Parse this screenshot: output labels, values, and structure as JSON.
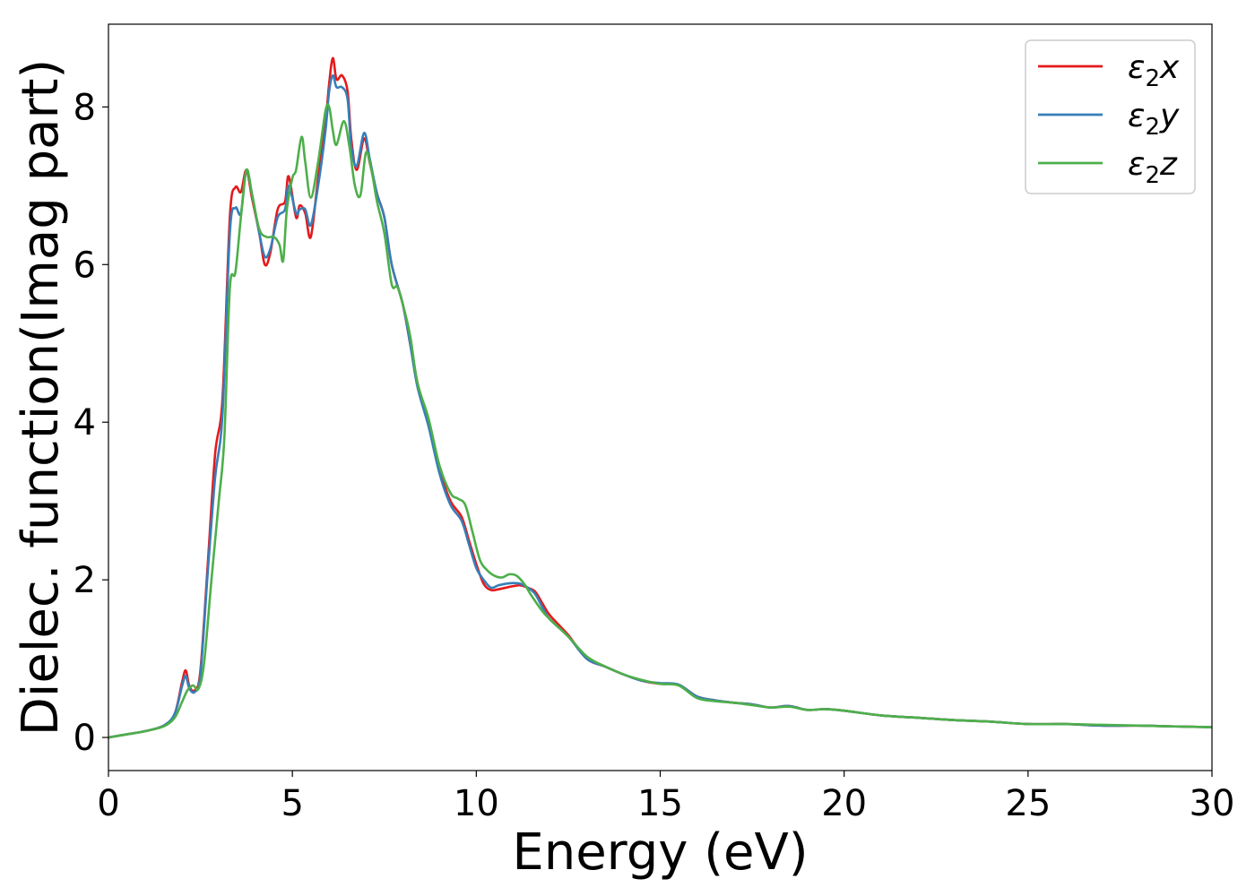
{
  "chart_data": {
    "type": "line",
    "xlabel": "Energy (eV)",
    "ylabel": "Dielec. function(Imag part)",
    "xlim": [
      0,
      30
    ],
    "ylim": [
      -0.42,
      9.05
    ],
    "xticks": [
      0,
      5,
      10,
      15,
      20,
      25,
      30
    ],
    "xtick_labels": [
      "0",
      "5",
      "10",
      "15",
      "20",
      "25",
      "30"
    ],
    "yticks": [
      0,
      2,
      4,
      6,
      8
    ],
    "ytick_labels": [
      "0",
      "2",
      "4",
      "6",
      "8"
    ],
    "grid": false,
    "legend_position": "top-right",
    "series": [
      {
        "name": "ε₂x",
        "legend_base": "ε",
        "legend_sub": "2",
        "legend_suffix": "x",
        "color": "#e41a1c",
        "x": [
          0,
          0.5,
          1.0,
          1.5,
          1.8,
          2.0,
          2.1,
          2.2,
          2.35,
          2.5,
          2.7,
          2.9,
          3.1,
          3.3,
          3.45,
          3.6,
          3.75,
          3.9,
          4.1,
          4.25,
          4.4,
          4.6,
          4.8,
          4.9,
          5.1,
          5.2,
          5.35,
          5.5,
          5.7,
          5.9,
          6.0,
          6.1,
          6.2,
          6.35,
          6.5,
          6.6,
          6.75,
          6.95,
          7.1,
          7.3,
          7.5,
          7.7,
          8.0,
          8.2,
          8.4,
          8.7,
          9.0,
          9.3,
          9.6,
          9.8,
          10.0,
          10.2,
          10.4,
          10.6,
          10.8,
          11.0,
          11.2,
          11.4,
          11.6,
          11.8,
          12.0,
          12.5,
          13.0,
          13.5,
          14.0,
          14.5,
          15.0,
          15.5,
          16.0,
          16.5,
          17.0,
          17.5,
          18.0,
          18.5,
          19.0,
          19.5,
          20.0,
          21.0,
          22.0,
          23.0,
          24.0,
          25.0,
          26.0,
          27.0,
          28.0,
          29.0,
          30.0
        ],
        "y": [
          0.0,
          0.04,
          0.08,
          0.15,
          0.3,
          0.7,
          0.85,
          0.65,
          0.6,
          0.85,
          2.2,
          3.6,
          4.3,
          6.6,
          6.98,
          6.92,
          7.2,
          6.85,
          6.4,
          6.0,
          6.15,
          6.7,
          6.8,
          7.12,
          6.6,
          6.75,
          6.65,
          6.35,
          7.1,
          7.8,
          8.3,
          8.62,
          8.35,
          8.4,
          8.2,
          7.6,
          7.2,
          7.6,
          7.3,
          6.9,
          6.6,
          6.0,
          5.5,
          5.0,
          4.5,
          4.0,
          3.4,
          3.0,
          2.8,
          2.5,
          2.2,
          1.95,
          1.87,
          1.88,
          1.9,
          1.92,
          1.93,
          1.9,
          1.85,
          1.7,
          1.55,
          1.3,
          1.0,
          0.9,
          0.8,
          0.72,
          0.68,
          0.67,
          0.52,
          0.47,
          0.44,
          0.42,
          0.38,
          0.4,
          0.35,
          0.36,
          0.34,
          0.28,
          0.25,
          0.22,
          0.2,
          0.17,
          0.17,
          0.15,
          0.15,
          0.14,
          0.13
        ]
      },
      {
        "name": "ε₂y",
        "legend_base": "ε",
        "legend_sub": "2",
        "legend_suffix": "y",
        "color": "#377eb8",
        "x": [
          0,
          0.5,
          1.0,
          1.5,
          1.8,
          2.0,
          2.1,
          2.2,
          2.35,
          2.5,
          2.7,
          2.9,
          3.1,
          3.3,
          3.45,
          3.6,
          3.75,
          3.9,
          4.1,
          4.25,
          4.4,
          4.6,
          4.8,
          4.9,
          5.1,
          5.2,
          5.35,
          5.5,
          5.7,
          5.9,
          6.0,
          6.1,
          6.2,
          6.35,
          6.5,
          6.6,
          6.75,
          6.95,
          7.1,
          7.3,
          7.5,
          7.7,
          8.0,
          8.2,
          8.4,
          8.7,
          9.0,
          9.3,
          9.6,
          9.8,
          10.0,
          10.2,
          10.4,
          10.6,
          10.8,
          11.0,
          11.2,
          11.4,
          11.6,
          11.8,
          12.0,
          12.5,
          13.0,
          13.5,
          14.0,
          14.5,
          15.0,
          15.5,
          16.0,
          16.5,
          17.0,
          17.5,
          18.0,
          18.5,
          19.0,
          19.5,
          20.0,
          21.0,
          22.0,
          23.0,
          24.0,
          25.0,
          26.0,
          27.0,
          28.0,
          29.0,
          30.0
        ],
        "y": [
          0.0,
          0.04,
          0.08,
          0.15,
          0.3,
          0.65,
          0.78,
          0.62,
          0.58,
          0.8,
          2.1,
          3.3,
          4.1,
          6.4,
          6.72,
          6.65,
          7.2,
          6.9,
          6.4,
          6.1,
          6.2,
          6.6,
          6.7,
          7.0,
          6.65,
          6.7,
          6.7,
          6.5,
          7.0,
          7.7,
          8.2,
          8.4,
          8.25,
          8.25,
          8.1,
          7.5,
          7.25,
          7.67,
          7.35,
          6.9,
          6.6,
          6.0,
          5.5,
          5.0,
          4.45,
          3.95,
          3.35,
          2.95,
          2.75,
          2.45,
          2.15,
          2.0,
          1.9,
          1.93,
          1.95,
          1.96,
          1.95,
          1.9,
          1.82,
          1.65,
          1.5,
          1.28,
          1.0,
          0.9,
          0.8,
          0.72,
          0.69,
          0.67,
          0.52,
          0.47,
          0.44,
          0.42,
          0.38,
          0.4,
          0.35,
          0.36,
          0.34,
          0.28,
          0.25,
          0.22,
          0.2,
          0.17,
          0.17,
          0.15,
          0.15,
          0.14,
          0.13
        ]
      },
      {
        "name": "ε₂z",
        "legend_base": "ε",
        "legend_sub": "2",
        "legend_suffix": "z",
        "color": "#4daf4a",
        "x": [
          0,
          0.5,
          1.0,
          1.5,
          1.8,
          2.0,
          2.15,
          2.3,
          2.45,
          2.6,
          2.8,
          3.0,
          3.15,
          3.3,
          3.45,
          3.6,
          3.75,
          3.9,
          4.1,
          4.3,
          4.5,
          4.65,
          4.75,
          4.85,
          5.0,
          5.1,
          5.25,
          5.35,
          5.5,
          5.7,
          5.9,
          6.0,
          6.1,
          6.2,
          6.4,
          6.55,
          6.7,
          6.85,
          7.0,
          7.15,
          7.3,
          7.5,
          7.7,
          7.85,
          8.0,
          8.2,
          8.4,
          8.7,
          9.0,
          9.3,
          9.5,
          9.7,
          9.9,
          10.1,
          10.3,
          10.5,
          10.7,
          10.9,
          11.1,
          11.3,
          11.5,
          11.8,
          12.0,
          12.5,
          13.0,
          13.5,
          14.0,
          14.5,
          15.0,
          15.5,
          16.0,
          16.5,
          17.0,
          17.5,
          18.0,
          18.5,
          19.0,
          19.5,
          20.0,
          21.0,
          22.0,
          23.0,
          24.0,
          25.0,
          26.0,
          27.0,
          28.0,
          29.0,
          30.0
        ],
        "y": [
          0.0,
          0.04,
          0.08,
          0.14,
          0.25,
          0.45,
          0.6,
          0.66,
          0.62,
          0.95,
          2.0,
          3.0,
          3.8,
          5.7,
          5.9,
          6.6,
          7.2,
          6.9,
          6.45,
          6.35,
          6.35,
          6.25,
          6.05,
          6.7,
          7.1,
          7.2,
          7.62,
          7.3,
          6.85,
          7.3,
          7.95,
          8.0,
          7.7,
          7.52,
          7.82,
          7.5,
          7.0,
          6.88,
          7.42,
          7.2,
          6.8,
          6.4,
          5.75,
          5.72,
          5.5,
          5.1,
          4.5,
          4.05,
          3.45,
          3.1,
          3.03,
          2.95,
          2.6,
          2.25,
          2.12,
          2.05,
          2.03,
          2.07,
          2.05,
          1.95,
          1.8,
          1.6,
          1.5,
          1.28,
          1.03,
          0.9,
          0.8,
          0.73,
          0.68,
          0.66,
          0.5,
          0.46,
          0.44,
          0.41,
          0.38,
          0.39,
          0.35,
          0.36,
          0.34,
          0.28,
          0.25,
          0.22,
          0.2,
          0.17,
          0.17,
          0.16,
          0.15,
          0.14,
          0.13
        ]
      }
    ]
  }
}
